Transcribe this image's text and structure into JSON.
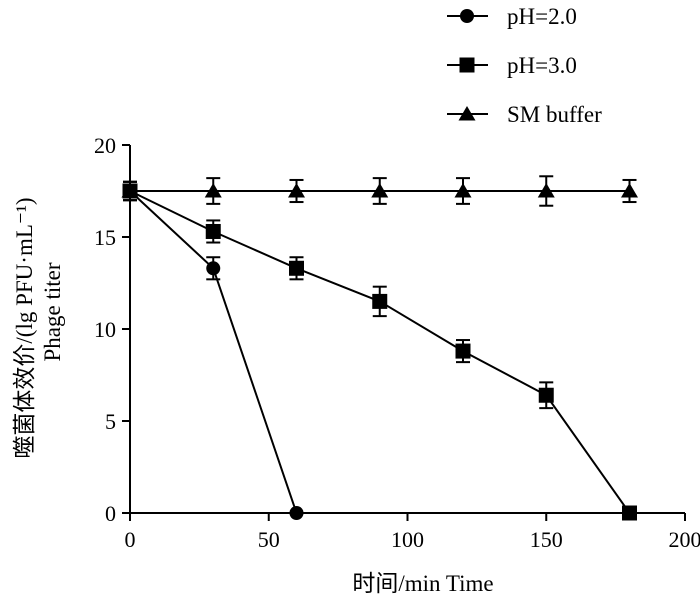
{
  "chart_data": {
    "type": "line",
    "title": "",
    "xlabel": "时间/min  Time",
    "ylabel_cn": "噬菌体效价/(lg PFU·mL⁻¹)",
    "ylabel_en": "Phage titer",
    "xlim": [
      0,
      200
    ],
    "ylim": [
      0,
      20
    ],
    "xticks": [
      0,
      50,
      100,
      150,
      200
    ],
    "yticks": [
      0,
      5,
      10,
      15,
      20
    ],
    "grid": false,
    "legend_position": "top-right",
    "series": [
      {
        "name": "pH=2.0",
        "marker": "circle",
        "x": [
          0,
          30,
          60
        ],
        "y": [
          17.5,
          13.3,
          0
        ],
        "err": [
          0.5,
          0.6,
          0
        ]
      },
      {
        "name": "pH=3.0",
        "marker": "square",
        "x": [
          0,
          30,
          60,
          90,
          120,
          150,
          180
        ],
        "y": [
          17.5,
          15.3,
          13.3,
          11.5,
          8.8,
          6.4,
          0
        ],
        "err": [
          0.5,
          0.6,
          0.6,
          0.8,
          0.6,
          0.7,
          0
        ]
      },
      {
        "name": "SM buffer",
        "marker": "triangle",
        "x": [
          0,
          30,
          60,
          90,
          120,
          150,
          180
        ],
        "y": [
          17.5,
          17.5,
          17.5,
          17.5,
          17.5,
          17.5,
          17.5
        ],
        "err": [
          0.5,
          0.7,
          0.6,
          0.7,
          0.7,
          0.8,
          0.6
        ]
      }
    ],
    "colors": {
      "line": "#000000",
      "marker": "#000000"
    }
  }
}
